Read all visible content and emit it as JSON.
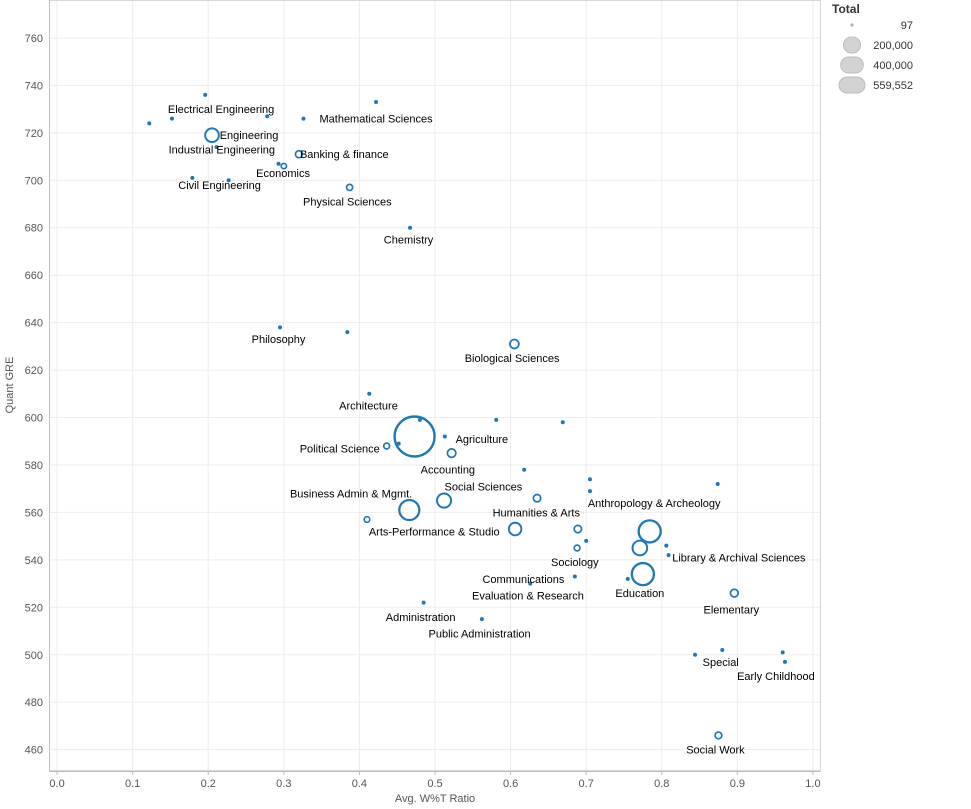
{
  "chart_data": {
    "type": "scatter",
    "title": "",
    "xlabel": "Avg. W%T Ratio",
    "ylabel": "Quant GRE",
    "xlim": [
      -0.01,
      1.01
    ],
    "ylim": [
      451,
      776
    ],
    "x_ticks": [
      0.0,
      0.1,
      0.2,
      0.3,
      0.4,
      0.5,
      0.6,
      0.7,
      0.8,
      0.9,
      1.0
    ],
    "x_tick_labels": [
      "0.0",
      "0.1",
      "0.2",
      "0.3",
      "0.4",
      "0.5",
      "0.6",
      "0.7",
      "0.8",
      "0.9",
      "1.0"
    ],
    "y_ticks": [
      460,
      480,
      500,
      520,
      540,
      560,
      580,
      600,
      620,
      640,
      660,
      680,
      700,
      720,
      740,
      760
    ],
    "y_tick_labels": [
      "460",
      "480",
      "500",
      "520",
      "540",
      "560",
      "580",
      "600",
      "620",
      "640",
      "660",
      "680",
      "700",
      "720",
      "740",
      "760"
    ],
    "grid": true,
    "marker_color": "#1f77b4",
    "size_legend": {
      "title": "Total",
      "placement": "top-right",
      "entries": [
        {
          "label": "97",
          "value": 97
        },
        {
          "label": "200,000",
          "value": 200000
        },
        {
          "label": "400,000",
          "value": 400000
        },
        {
          "label": "559,552",
          "value": 559552
        }
      ]
    },
    "points": [
      {
        "x": 0.196,
        "y": 736,
        "size": 500,
        "label": ""
      },
      {
        "x": 0.422,
        "y": 733,
        "size": 3000,
        "label": ""
      },
      {
        "x": 0.278,
        "y": 727,
        "size": 97,
        "label": ""
      },
      {
        "x": 0.326,
        "y": 726,
        "size": 500,
        "label": ""
      },
      {
        "x": 0.152,
        "y": 726,
        "size": 9000,
        "label": ""
      },
      {
        "x": 0.122,
        "y": 724,
        "size": 9000,
        "label": ""
      },
      {
        "x": 0.205,
        "y": 719,
        "size": 65000,
        "label": ""
      },
      {
        "x": 0.211,
        "y": 714,
        "size": 97,
        "label": ""
      },
      {
        "x": 0.32,
        "y": 711,
        "size": 17000,
        "label": ""
      },
      {
        "x": 0.293,
        "y": 707,
        "size": 97,
        "label": ""
      },
      {
        "x": 0.3,
        "y": 706,
        "size": 10000,
        "label": ""
      },
      {
        "x": 0.179,
        "y": 701,
        "size": 5000,
        "label": ""
      },
      {
        "x": 0.227,
        "y": 700,
        "size": 5000,
        "label": ""
      },
      {
        "x": 0.387,
        "y": 697,
        "size": 13000,
        "label": ""
      },
      {
        "x": 0.467,
        "y": 680,
        "size": 3500,
        "label": ""
      },
      {
        "x": 0.295,
        "y": 638,
        "size": 500,
        "label": ""
      },
      {
        "x": 0.384,
        "y": 636,
        "size": 97,
        "label": ""
      },
      {
        "x": 0.605,
        "y": 631,
        "size": 28000,
        "label": ""
      },
      {
        "x": 0.413,
        "y": 610,
        "size": 500,
        "label": ""
      },
      {
        "x": 0.48,
        "y": 599,
        "size": 500,
        "label": ""
      },
      {
        "x": 0.581,
        "y": 599,
        "size": 97,
        "label": ""
      },
      {
        "x": 0.669,
        "y": 598,
        "size": 97,
        "label": ""
      },
      {
        "x": 0.473,
        "y": 592,
        "size": 559552,
        "label": ""
      },
      {
        "x": 0.513,
        "y": 592,
        "size": 3000,
        "label": ""
      },
      {
        "x": 0.452,
        "y": 589,
        "size": 97,
        "label": ""
      },
      {
        "x": 0.436,
        "y": 588,
        "size": 12000,
        "label": ""
      },
      {
        "x": 0.522,
        "y": 585,
        "size": 25000,
        "label": ""
      },
      {
        "x": 0.618,
        "y": 578,
        "size": 2000,
        "label": ""
      },
      {
        "x": 0.705,
        "y": 574,
        "size": 97,
        "label": ""
      },
      {
        "x": 0.874,
        "y": 572,
        "size": 500,
        "label": ""
      },
      {
        "x": 0.705,
        "y": 569,
        "size": 1500,
        "label": ""
      },
      {
        "x": 0.635,
        "y": 566,
        "size": 19000,
        "label": ""
      },
      {
        "x": 0.512,
        "y": 565,
        "size": 70000,
        "label": ""
      },
      {
        "x": 0.466,
        "y": 561,
        "size": 140000,
        "label": ""
      },
      {
        "x": 0.41,
        "y": 557,
        "size": 11000,
        "label": ""
      },
      {
        "x": 0.606,
        "y": 553,
        "size": 55000,
        "label": ""
      },
      {
        "x": 0.689,
        "y": 553,
        "size": 19000,
        "label": ""
      },
      {
        "x": 0.784,
        "y": 552,
        "size": 170000,
        "label": ""
      },
      {
        "x": 0.7,
        "y": 548,
        "size": 97,
        "label": ""
      },
      {
        "x": 0.806,
        "y": 546,
        "size": 3000,
        "label": ""
      },
      {
        "x": 0.688,
        "y": 545,
        "size": 12000,
        "label": ""
      },
      {
        "x": 0.771,
        "y": 545,
        "size": 75000,
        "label": ""
      },
      {
        "x": 0.809,
        "y": 542,
        "size": 1500,
        "label": ""
      },
      {
        "x": 0.775,
        "y": 534,
        "size": 170000,
        "label": ""
      },
      {
        "x": 0.685,
        "y": 533,
        "size": 500,
        "label": ""
      },
      {
        "x": 0.755,
        "y": 532,
        "size": 97,
        "label": ""
      },
      {
        "x": 0.626,
        "y": 530,
        "size": 97,
        "label": ""
      },
      {
        "x": 0.896,
        "y": 526,
        "size": 21000,
        "label": ""
      },
      {
        "x": 0.485,
        "y": 522,
        "size": 3000,
        "label": ""
      },
      {
        "x": 0.562,
        "y": 515,
        "size": 3000,
        "label": ""
      },
      {
        "x": 0.88,
        "y": 502,
        "size": 500,
        "label": ""
      },
      {
        "x": 0.96,
        "y": 501,
        "size": 97,
        "label": ""
      },
      {
        "x": 0.844,
        "y": 500,
        "size": 97,
        "label": ""
      },
      {
        "x": 0.963,
        "y": 497,
        "size": 5000,
        "label": ""
      },
      {
        "x": 0.875,
        "y": 466,
        "size": 16000,
        "label": ""
      }
    ],
    "annotations": [
      {
        "text": "Electrical Engineering",
        "x": 0.217,
        "y": 730
      },
      {
        "text": "Mathematical Sciences",
        "x": 0.422,
        "y": 726
      },
      {
        "text": "Engineering",
        "x": 0.254,
        "y": 719
      },
      {
        "text": "Industrial Engineering",
        "x": 0.218,
        "y": 713
      },
      {
        "text": "Banking & finance",
        "x": 0.38,
        "y": 711
      },
      {
        "text": "Economics",
        "x": 0.299,
        "y": 703
      },
      {
        "text": "Civil Engineering",
        "x": 0.215,
        "y": 698
      },
      {
        "text": "Physical Sciences",
        "x": 0.384,
        "y": 691
      },
      {
        "text": "Chemistry",
        "x": 0.465,
        "y": 675
      },
      {
        "text": "Philosophy",
        "x": 0.293,
        "y": 633
      },
      {
        "text": "Biological Sciences",
        "x": 0.602,
        "y": 625
      },
      {
        "text": "Architecture",
        "x": 0.412,
        "y": 605
      },
      {
        "text": "Agriculture",
        "x": 0.562,
        "y": 591
      },
      {
        "text": "Political Science",
        "x": 0.374,
        "y": 587
      },
      {
        "text": "Accounting",
        "x": 0.517,
        "y": 578
      },
      {
        "text": "Social Sciences",
        "x": 0.564,
        "y": 571
      },
      {
        "text": "Business Admin & Mgmt.",
        "x": 0.389,
        "y": 568
      },
      {
        "text": "Anthropology & Archeology",
        "x": 0.79,
        "y": 564
      },
      {
        "text": "Humanities & Arts",
        "x": 0.634,
        "y": 560
      },
      {
        "text": "Arts-Performance & Studio",
        "x": 0.499,
        "y": 552
      },
      {
        "text": "Library & Archival Sciences",
        "x": 0.902,
        "y": 541
      },
      {
        "text": "Sociology",
        "x": 0.685,
        "y": 539
      },
      {
        "text": "Communications",
        "x": 0.617,
        "y": 532
      },
      {
        "text": "Education",
        "x": 0.771,
        "y": 526
      },
      {
        "text": "Evaluation & Research",
        "x": 0.623,
        "y": 525
      },
      {
        "text": "Elementary",
        "x": 0.892,
        "y": 519
      },
      {
        "text": "Administration",
        "x": 0.481,
        "y": 516
      },
      {
        "text": "Public Administration",
        "x": 0.559,
        "y": 509
      },
      {
        "text": "Special",
        "x": 0.878,
        "y": 497
      },
      {
        "text": "Early Childhood",
        "x": 0.951,
        "y": 491
      },
      {
        "text": "Social Work",
        "x": 0.871,
        "y": 460
      }
    ]
  }
}
